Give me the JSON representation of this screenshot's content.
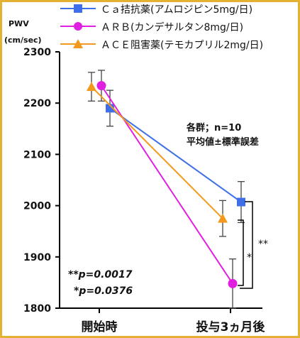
{
  "chart_data": {
    "type": "line",
    "ylabel_line1": "PWV",
    "ylabel_line2": "(cm/sec)",
    "xlabel": "",
    "categories": [
      "開始時",
      "投与3ヵ月後"
    ],
    "ylim": [
      1800,
      2300
    ],
    "yticks": [
      1800,
      1900,
      2000,
      2100,
      2200,
      2300
    ],
    "legend_position": "top-left",
    "series": [
      {
        "name": "Ｃａ拮抗薬(アムロジピン5mg/日)",
        "values": [
          2190,
          2007
        ],
        "errors": [
          35,
          40
        ],
        "color": "#3e6fe8",
        "marker": "square"
      },
      {
        "name": "ＡＲＢ(カンデサルタン8mg/日)",
        "values": [
          2234,
          1848
        ],
        "errors": [
          30,
          48
        ],
        "color": "#e020e0",
        "marker": "circle"
      },
      {
        "name": "ＡＣＥ阻害薬(テモカプリル2mg/日)",
        "values": [
          2232,
          1975
        ],
        "errors": [
          28,
          35
        ],
        "color": "#f39a1e",
        "marker": "triangle"
      }
    ],
    "annotations": {
      "note_line1": "各群；n=10",
      "note_line2": "平均値±標準誤差",
      "pval1_stars": "**",
      "pval1_label": "p=0.0017",
      "pval2_stars": "*",
      "pval2_label": "p=0.0376",
      "bracket_outer": "**",
      "bracket_inner": "*"
    }
  }
}
